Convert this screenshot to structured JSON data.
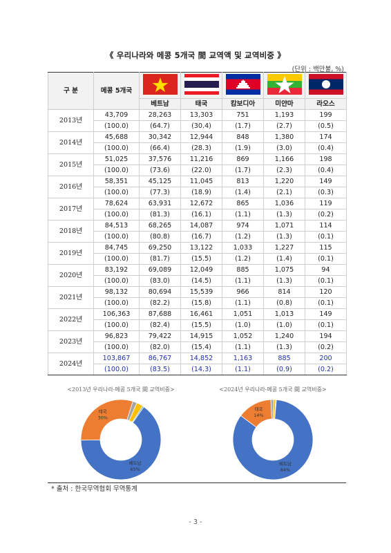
{
  "title": "《 우리나라와 메콩 5개국 間 교역액 및 교역비중 》",
  "unit": "(단위 : 백만불, %)",
  "table": {
    "header_label": "구  분",
    "header_total": "메콩 5개국",
    "countries": [
      {
        "name": "베트남",
        "flag": "vietnam-flag"
      },
      {
        "name": "태국",
        "flag": "thailand-flag"
      },
      {
        "name": "캄보디아",
        "flag": "cambodia-flag"
      },
      {
        "name": "미얀마",
        "flag": "myanmar-flag"
      },
      {
        "name": "라오스",
        "flag": "laos-flag"
      }
    ],
    "rows": [
      {
        "year": "2013년",
        "values": [
          "43,709",
          "28,263",
          "13,303",
          "751",
          "1,193",
          "199"
        ],
        "shares": [
          "(100.0)",
          "(64.7)",
          "(30.4)",
          "(1.7)",
          "(2.7)",
          "(0.5)"
        ]
      },
      {
        "year": "2014년",
        "values": [
          "45,688",
          "30,342",
          "12,944",
          "848",
          "1,380",
          "174"
        ],
        "shares": [
          "(100.0)",
          "(66.4)",
          "(28.3)",
          "(1.9)",
          "(3.0)",
          "(0.4)"
        ]
      },
      {
        "year": "2015년",
        "values": [
          "51,025",
          "37,576",
          "11,216",
          "869",
          "1,166",
          "198"
        ],
        "shares": [
          "(100.0)",
          "(73.6)",
          "(22.0)",
          "(1.7)",
          "(2.3)",
          "(0.4)"
        ]
      },
      {
        "year": "2016년",
        "values": [
          "58,351",
          "45,125",
          "11,045",
          "813",
          "1,220",
          "149"
        ],
        "shares": [
          "(100.0)",
          "(77.3)",
          "(18.9)",
          "(1.4)",
          "(2.1)",
          "(0.3)"
        ]
      },
      {
        "year": "2017년",
        "values": [
          "78,624",
          "63,931",
          "12,672",
          "865",
          "1,036",
          "119"
        ],
        "shares": [
          "(100.0)",
          "(81.3)",
          "(16.1)",
          "(1.1)",
          "(1.3)",
          "(0.2)"
        ]
      },
      {
        "year": "2018년",
        "values": [
          "84,513",
          "68,265",
          "14,087",
          "974",
          "1,071",
          "114"
        ],
        "shares": [
          "(100.0)",
          "(80.8)",
          "(16.7)",
          "(1.2)",
          "(1.3)",
          "(0.1)"
        ]
      },
      {
        "year": "2019년",
        "values": [
          "84,745",
          "69,250",
          "13,122",
          "1,033",
          "1,227",
          "115"
        ],
        "shares": [
          "(100.0)",
          "(81.7)",
          "(15.5)",
          "(1.2)",
          "(1.4)",
          "(0.1)"
        ]
      },
      {
        "year": "2020년",
        "values": [
          "83,192",
          "69,089",
          "12,049",
          "885",
          "1,075",
          "94"
        ],
        "shares": [
          "(100.0)",
          "(83.0)",
          "(14.5)",
          "(1.1)",
          "(1.3)",
          "(0.1)"
        ]
      },
      {
        "year": "2021년",
        "values": [
          "98,132",
          "80,694",
          "15,539",
          "966",
          "814",
          "120"
        ],
        "shares": [
          "(100.0)",
          "(82.2)",
          "(15.8)",
          "(1.1)",
          "(0.8)",
          "(0.1)"
        ]
      },
      {
        "year": "2022년",
        "values": [
          "106,363",
          "87,688",
          "16,461",
          "1,051",
          "1,013",
          "149"
        ],
        "shares": [
          "(100.0)",
          "(82.4)",
          "(15.5)",
          "(1.0)",
          "(1.0)",
          "(0.1)"
        ]
      },
      {
        "year": "2023년",
        "values": [
          "96,823",
          "79,422",
          "14,915",
          "1,052",
          "1,240",
          "194"
        ],
        "shares": [
          "(100.0)",
          "(82.0)",
          "(15.4)",
          "(1.1)",
          "(1.3)",
          "(0.2)"
        ]
      },
      {
        "year": "2024년",
        "values": [
          "103,867",
          "86,767",
          "14,852",
          "1,163",
          "885",
          "200"
        ],
        "shares": [
          "(100.0)",
          "(83.5)",
          "(14.3)",
          "(1.1)",
          "(0.9)",
          "(0.2)"
        ]
      }
    ]
  },
  "chart_data": [
    {
      "type": "pie",
      "title": "<2013년 우리나라-메콩 5개국 間 교역비중>",
      "slices": [
        {
          "label": "베트남",
          "value": 65,
          "display": "65%",
          "color": "#4472c4"
        },
        {
          "label": "태국",
          "value": 30,
          "display": "30%",
          "color": "#ed7d31"
        },
        {
          "label": "캄보디아",
          "value": 1.7,
          "color": "#a5a5a5"
        },
        {
          "label": "미얀마",
          "value": 2.7,
          "color": "#ffc000"
        },
        {
          "label": "라오스",
          "value": 0.5,
          "color": "#5b9bd5"
        }
      ]
    },
    {
      "type": "pie",
      "title": "<2024년 우리나라-메콩 5개국 間 교역비중>",
      "slices": [
        {
          "label": "베트남",
          "value": 84,
          "display": "84%",
          "color": "#4472c4"
        },
        {
          "label": "태국",
          "value": 14,
          "display": "14%",
          "color": "#ed7d31"
        },
        {
          "label": "캄보디아",
          "value": 1.1,
          "color": "#a5a5a5"
        },
        {
          "label": "미얀마",
          "value": 0.9,
          "color": "#ffc000"
        },
        {
          "label": "라오스",
          "value": 0.2,
          "color": "#5b9bd5"
        }
      ]
    }
  ],
  "source": "* 출처 : 한국무역협회 무역통계",
  "page_number": "- 3 -",
  "colors": {
    "highlight": "#1f2fa8",
    "rule": "#333333"
  }
}
